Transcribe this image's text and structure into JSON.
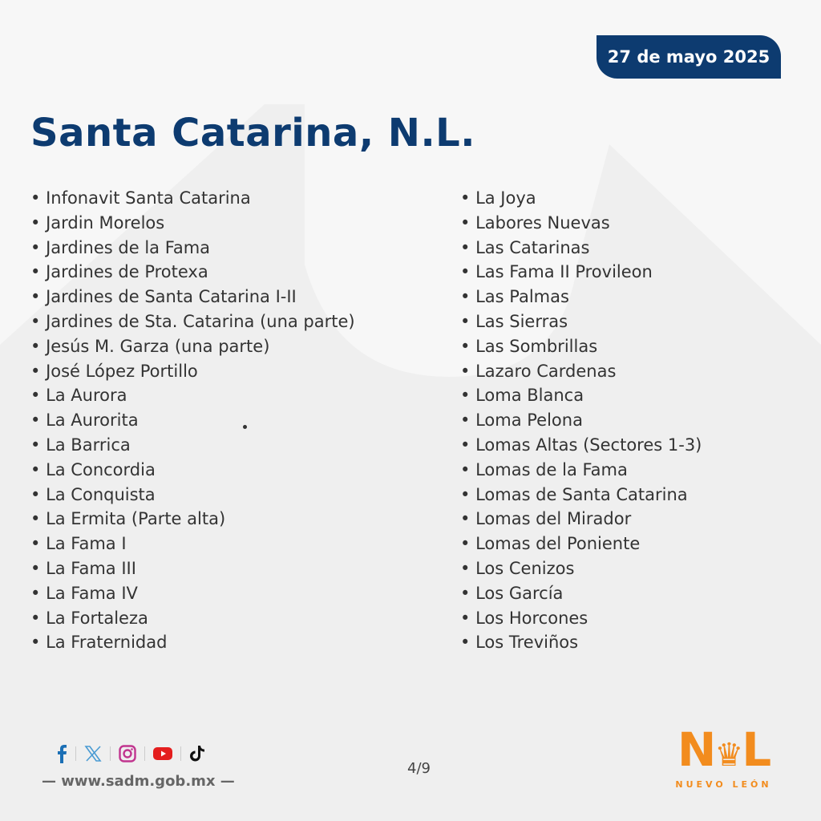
{
  "header": {
    "date": "27 de mayo 2025",
    "title": "Santa Catarina, N.L."
  },
  "list_left": [
    "Infonavit Santa Catarina",
    "Jardin Morelos",
    "Jardines de la Fama",
    "Jardines de Protexa",
    "Jardines de Santa Catarina I-II",
    "Jardines de Sta. Catarina (una parte)",
    "Jesús M. Garza (una parte)",
    "José López Portillo",
    "La Aurora",
    "La Aurorita",
    "La Barrica",
    "La Concordia",
    "La Conquista",
    "La Ermita (Parte alta)",
    "La Fama I",
    "La Fama III",
    "La Fama IV",
    "La Fortaleza",
    "La Fraternidad"
  ],
  "list_right": [
    "La Joya",
    "Labores Nuevas",
    "Las Catarinas",
    "Las Fama II Provileon",
    "Las Palmas",
    "Las Sierras",
    "Las Sombrillas",
    "Lazaro Cardenas",
    "Loma Blanca",
    "Loma Pelona",
    "Lomas Altas (Sectores 1-3)",
    "Lomas de la Fama",
    "Lomas de Santa Catarina",
    "Lomas del Mirador",
    "Lomas del Poniente",
    "Los Cenizos",
    "Los García",
    "Los Horcones",
    "Los Treviños"
  ],
  "footer": {
    "social_icons": [
      "facebook-icon",
      "x-icon",
      "instagram-icon",
      "youtube-icon",
      "tiktok-icon"
    ],
    "website": "— www.sadm.gob.mx —",
    "page": "4/9",
    "logo_text": "N L",
    "logo_subtext": "NUEVO LEÓN"
  },
  "colors": {
    "navy": "#0d3b70",
    "orange": "#f28c1e",
    "background": "#f7f7f7"
  }
}
